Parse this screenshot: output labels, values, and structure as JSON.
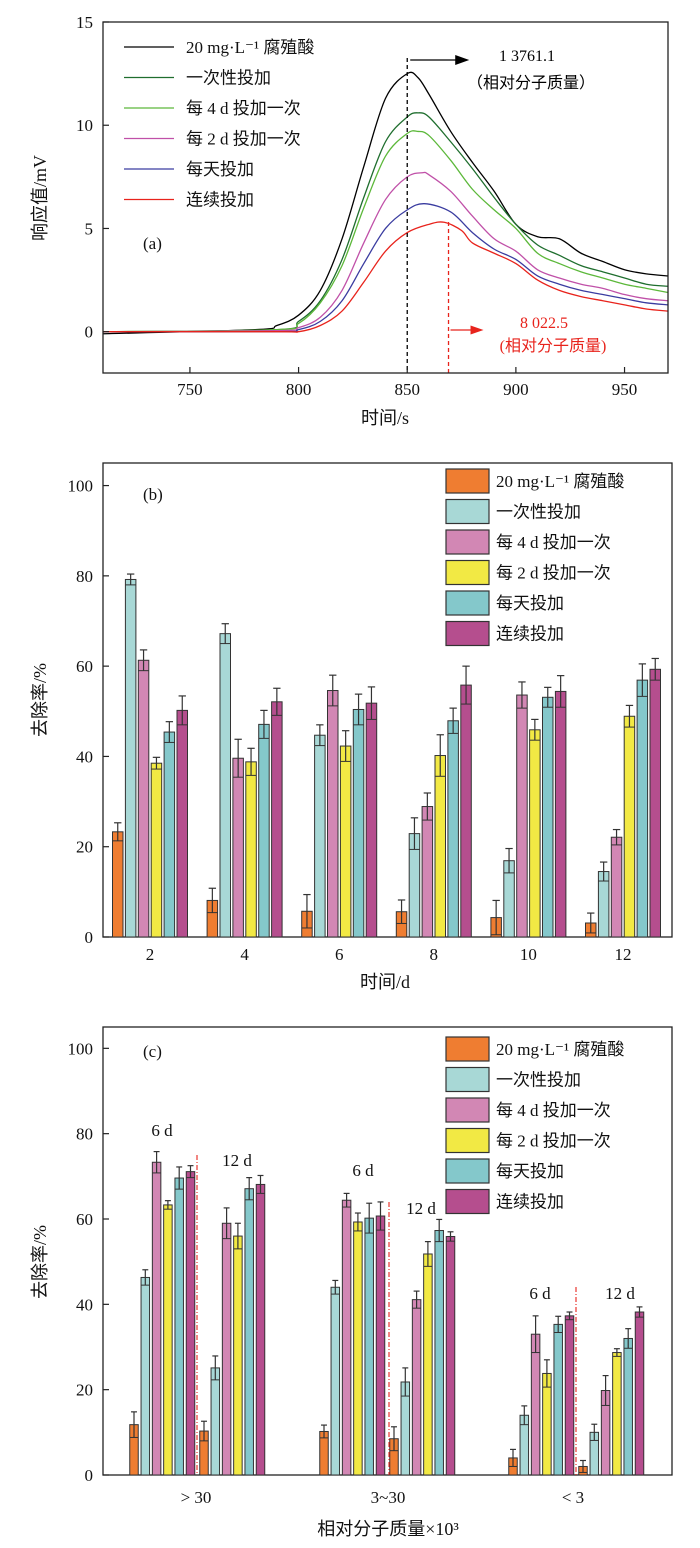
{
  "chart_data": [
    {
      "panel": "(a)",
      "type": "line",
      "xlabel": "时间/s",
      "ylabel": "响应值/mV",
      "xlim": [
        710,
        970
      ],
      "ylim": [
        -2,
        15
      ],
      "xticks": [
        750,
        800,
        850,
        900,
        950
      ],
      "yticks": [
        0,
        5,
        10,
        15
      ],
      "grid": false,
      "legend_position": "top-left",
      "series": [
        {
          "name": "20 mg·L⁻¹ 腐殖酸",
          "color": "#000000",
          "x": [
            710,
            780,
            790,
            800,
            810,
            820,
            830,
            840,
            850,
            855,
            860,
            870,
            880,
            890,
            900,
            910,
            920,
            930,
            940,
            950,
            960,
            970
          ],
          "y": [
            -0.1,
            0.1,
            0.3,
            0.8,
            2.0,
            4.5,
            8.0,
            11.3,
            12.5,
            12.3,
            11.5,
            9.7,
            8.2,
            6.8,
            5.2,
            4.6,
            4.5,
            3.8,
            3.4,
            3.0,
            2.8,
            2.7
          ]
        },
        {
          "name": "一次性投加",
          "color": "#1f6e2e",
          "x": [
            710,
            790,
            800,
            810,
            820,
            830,
            840,
            850,
            855,
            860,
            870,
            880,
            890,
            900,
            910,
            920,
            930,
            940,
            950,
            960,
            970
          ],
          "y": [
            0.0,
            0.1,
            0.5,
            1.5,
            3.5,
            6.5,
            9.2,
            10.4,
            10.6,
            10.4,
            9.2,
            7.9,
            6.5,
            5.2,
            4.2,
            3.7,
            3.2,
            2.9,
            2.6,
            2.3,
            2.2
          ]
        },
        {
          "name": "每 4 d 投加一次",
          "color": "#5cb83a",
          "x": [
            710,
            790,
            800,
            810,
            820,
            830,
            840,
            850,
            855,
            860,
            870,
            880,
            890,
            900,
            910,
            920,
            930,
            940,
            950,
            960,
            970
          ],
          "y": [
            0.0,
            0.1,
            0.4,
            1.4,
            3.2,
            6.0,
            8.5,
            9.6,
            9.7,
            9.5,
            8.3,
            6.9,
            5.9,
            5.0,
            3.8,
            3.3,
            2.9,
            2.6,
            2.3,
            2.1,
            1.9
          ]
        },
        {
          "name": "每 2 d 投加一次",
          "color": "#c050a8",
          "x": [
            710,
            790,
            800,
            810,
            820,
            830,
            840,
            850,
            857,
            860,
            870,
            880,
            890,
            900,
            910,
            920,
            930,
            940,
            950,
            960,
            970
          ],
          "y": [
            0.0,
            0.05,
            0.2,
            0.7,
            2.0,
            4.3,
            6.4,
            7.5,
            7.7,
            7.6,
            6.8,
            5.6,
            4.5,
            3.9,
            3.0,
            2.6,
            2.3,
            2.1,
            1.8,
            1.6,
            1.5
          ]
        },
        {
          "name": "每天投加",
          "color": "#3a3ca0",
          "x": [
            710,
            790,
            800,
            810,
            820,
            830,
            840,
            850,
            858,
            870,
            880,
            890,
            900,
            910,
            920,
            930,
            940,
            950,
            960,
            970
          ],
          "y": [
            0.0,
            0.0,
            0.1,
            0.5,
            1.5,
            3.3,
            5.0,
            5.9,
            6.2,
            5.8,
            4.8,
            4.0,
            3.5,
            2.7,
            2.3,
            2.0,
            1.8,
            1.6,
            1.4,
            1.3
          ]
        },
        {
          "name": "连续投加",
          "color": "#e8231c",
          "x": [
            710,
            790,
            800,
            810,
            820,
            830,
            840,
            850,
            860,
            867,
            875,
            880,
            890,
            900,
            910,
            920,
            930,
            940,
            950,
            960,
            970
          ],
          "y": [
            0.0,
            0.0,
            0.0,
            0.3,
            1.0,
            2.4,
            3.9,
            4.8,
            5.2,
            5.3,
            4.9,
            4.3,
            3.8,
            3.3,
            2.5,
            2.0,
            1.7,
            1.5,
            1.3,
            1.1,
            1.0
          ]
        }
      ],
      "annotations": [
        {
          "value": "1 3761.1",
          "note": "（相对分子质量）",
          "x": 850,
          "color": "#000000"
        },
        {
          "value": "8 022.5",
          "note": "(相对分子质量)",
          "x": 869,
          "color": "#e8231c"
        }
      ]
    },
    {
      "panel": "(b)",
      "type": "bar",
      "xlabel": "时间/d",
      "ylabel": "去除率/%",
      "ylim": [
        0,
        105
      ],
      "yticks": [
        0,
        20,
        40,
        60,
        80,
        100
      ],
      "legend_position": "top-right",
      "categories": [
        "2",
        "4",
        "6",
        "8",
        "10",
        "12"
      ],
      "series": [
        {
          "name": "20 mg·L⁻¹ 腐殖酸",
          "color": "#ef7d31",
          "values": [
            23.3,
            8.1,
            5.7,
            5.6,
            4.3,
            3.1
          ],
          "errors": [
            2.0,
            2.7,
            3.7,
            2.6,
            3.8,
            2.2
          ]
        },
        {
          "name": "一次性投加",
          "color": "#a8d8d6",
          "values": [
            79.2,
            67.2,
            44.7,
            22.9,
            16.9,
            14.5
          ],
          "errors": [
            1.2,
            2.2,
            2.3,
            3.5,
            2.7,
            2.1
          ]
        },
        {
          "name": "每 4 d 投加一次",
          "color": "#d287b4",
          "values": [
            61.3,
            39.6,
            54.6,
            28.9,
            53.6,
            22.1
          ],
          "errors": [
            2.3,
            4.2,
            3.4,
            3.0,
            2.9,
            1.7
          ]
        },
        {
          "name": "每 2 d 投加一次",
          "color": "#f2e944",
          "values": [
            38.5,
            38.8,
            42.3,
            40.2,
            45.9,
            48.9
          ],
          "errors": [
            1.3,
            3.0,
            3.4,
            4.6,
            2.3,
            2.4
          ]
        },
        {
          "name": "每天投加",
          "color": "#84c8cb",
          "values": [
            45.4,
            47.1,
            50.4,
            47.9,
            53.1,
            56.9
          ],
          "errors": [
            2.3,
            3.1,
            3.4,
            2.8,
            2.2,
            3.6
          ]
        },
        {
          "name": "连续投加",
          "color": "#b54e8e",
          "values": [
            50.2,
            52.1,
            51.8,
            55.8,
            54.4,
            59.3
          ],
          "errors": [
            3.2,
            3.0,
            3.6,
            4.2,
            3.5,
            2.4
          ]
        }
      ]
    },
    {
      "panel": "(c)",
      "type": "bar",
      "xlabel": "相对分子质量×10³",
      "ylabel": "去除率/%",
      "ylim": [
        0,
        105
      ],
      "yticks": [
        0,
        20,
        40,
        60,
        80,
        100
      ],
      "legend_position": "top-right",
      "categories": [
        "> 30",
        "3~30",
        "< 3"
      ],
      "subgroups": [
        "6 d",
        "12 d"
      ],
      "series": [
        {
          "name": "20 mg·L⁻¹ 腐殖酸",
          "color": "#ef7d31",
          "values": [
            [
              11.8,
              10.3
            ],
            [
              10.2,
              8.5
            ],
            [
              4.0,
              2.0
            ]
          ],
          "errors": [
            [
              3.0,
              2.3
            ],
            [
              1.5,
              2.8
            ],
            [
              2.0,
              1.4
            ]
          ]
        },
        {
          "name": "一次性投加",
          "color": "#a8d8d6",
          "values": [
            [
              46.3,
              25.1
            ],
            [
              44.0,
              21.8
            ],
            [
              14.0,
              10.0
            ]
          ],
          "errors": [
            [
              1.8,
              2.8
            ],
            [
              1.6,
              3.3
            ],
            [
              2.2,
              1.9
            ]
          ]
        },
        {
          "name": "每 4 d 投加一次",
          "color": "#d287b4",
          "values": [
            [
              73.3,
              59.0
            ],
            [
              64.4,
              41.1
            ],
            [
              33.0,
              19.8
            ]
          ],
          "errors": [
            [
              2.5,
              3.6
            ],
            [
              1.6,
              2.0
            ],
            [
              4.3,
              3.5
            ]
          ]
        },
        {
          "name": "每 2 d 投加一次",
          "color": "#f2e944",
          "values": [
            [
              63.3,
              56.0
            ],
            [
              59.3,
              51.8
            ],
            [
              23.8,
              28.7
            ]
          ],
          "errors": [
            [
              1.0,
              3.0
            ],
            [
              2.1,
              2.9
            ],
            [
              3.2,
              0.9
            ]
          ]
        },
        {
          "name": "每天投加",
          "color": "#84c8cb",
          "values": [
            [
              69.6,
              67.1
            ],
            [
              60.2,
              57.3
            ],
            [
              35.3,
              32.0
            ]
          ],
          "errors": [
            [
              2.6,
              2.6
            ],
            [
              3.5,
              2.6
            ],
            [
              1.9,
              2.3
            ]
          ]
        },
        {
          "name": "连续投加",
          "color": "#b54e8e",
          "values": [
            [
              71.1,
              68.1
            ],
            [
              60.7,
              55.9
            ],
            [
              37.3,
              38.2
            ]
          ],
          "errors": [
            [
              1.4,
              2.1
            ],
            [
              3.3,
              1.1
            ],
            [
              0.9,
              1.2
            ]
          ]
        }
      ]
    }
  ]
}
